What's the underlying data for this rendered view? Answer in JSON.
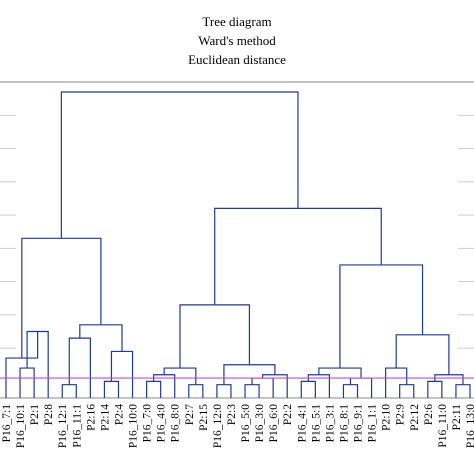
{
  "chart_data": {
    "type": "dendrogram",
    "title_lines": [
      "Tree diagram",
      "Ward's method",
      "Euclidean distance"
    ],
    "leaves": [
      "P16_7:1",
      "P16_10:1",
      "P2:1",
      "P2:8",
      "P16_12:1",
      "P16_11:1",
      "P2:16",
      "P2:14",
      "P2:4",
      "P16_10:0",
      "P16_7:0",
      "P16_4:0",
      "P16_8:0",
      "P2:7",
      "P2:15",
      "P16_12:0",
      "P2:3",
      "P16_5:0",
      "P16_3:0",
      "P16_6:0",
      "P2:2",
      "P16_4:1",
      "P16_5:1",
      "P16_3:1",
      "P16_8:1",
      "P16_9:1",
      "P16_1:1",
      "P2:10",
      "P2:9",
      "P2:12",
      "P2:6",
      "P16_11:0",
      "P2:11",
      "P16_13:0"
    ],
    "cut_height": 6,
    "ylim": [
      0,
      95
    ],
    "grid": true,
    "grid_values": [
      15,
      25,
      35,
      45,
      55,
      65,
      75,
      85
    ],
    "merges": [
      {
        "id": "c1",
        "children": [
          "P16_10:1",
          "P2:1"
        ],
        "height": 9
      },
      {
        "id": "c2",
        "children": [
          "c1",
          "P2:8"
        ],
        "height": 20
      },
      {
        "id": "c3",
        "children": [
          "P16_7:1",
          "c2"
        ],
        "height": 12
      },
      {
        "id": "c4",
        "children": [
          "P16_12:1",
          "P16_11:1"
        ],
        "height": 4
      },
      {
        "id": "c5",
        "children": [
          "c4",
          "P2:16"
        ],
        "height": 18
      },
      {
        "id": "c6",
        "children": [
          "P2:14",
          "P2:4"
        ],
        "height": 5
      },
      {
        "id": "c7",
        "children": [
          "c6",
          "P16_10:0"
        ],
        "height": 14
      },
      {
        "id": "c8",
        "children": [
          "c5",
          "c7"
        ],
        "height": 22
      },
      {
        "id": "c9",
        "children": [
          "c3",
          "c8"
        ],
        "height": 48
      },
      {
        "id": "c10",
        "children": [
          "P16_7:0",
          "P16_4:0"
        ],
        "height": 5
      },
      {
        "id": "c11",
        "children": [
          "c10",
          "P16_8:0"
        ],
        "height": 7
      },
      {
        "id": "c12",
        "children": [
          "P2:7",
          "P2:15"
        ],
        "height": 4
      },
      {
        "id": "c13",
        "children": [
          "c11",
          "c12"
        ],
        "height": 9
      },
      {
        "id": "c14",
        "children": [
          "P16_12:0",
          "P2:3"
        ],
        "height": 4
      },
      {
        "id": "c15",
        "children": [
          "P16_5:0",
          "P16_3:0"
        ],
        "height": 4
      },
      {
        "id": "c16",
        "children": [
          "c15",
          "P16_6:0"
        ],
        "height": 6
      },
      {
        "id": "c17",
        "children": [
          "c16",
          "P2:2"
        ],
        "height": 7
      },
      {
        "id": "c18",
        "children": [
          "c14",
          "c17"
        ],
        "height": 10
      },
      {
        "id": "c19",
        "children": [
          "c13",
          "c18"
        ],
        "height": 28
      },
      {
        "id": "c20",
        "children": [
          "P16_4:1",
          "P16_5:1"
        ],
        "height": 5
      },
      {
        "id": "c21",
        "children": [
          "c20",
          "P16_3:1"
        ],
        "height": 7
      },
      {
        "id": "c22",
        "children": [
          "P16_8:1",
          "P16_9:1"
        ],
        "height": 4
      },
      {
        "id": "c23",
        "children": [
          "c22",
          "P16_1:1"
        ],
        "height": 6
      },
      {
        "id": "c24",
        "children": [
          "c21",
          "c23"
        ],
        "height": 9
      },
      {
        "id": "c25",
        "children": [
          "P2:9",
          "P2:12"
        ],
        "height": 4
      },
      {
        "id": "c26",
        "children": [
          "P2:10",
          "c25"
        ],
        "height": 9
      },
      {
        "id": "c27",
        "children": [
          "P2:6",
          "P16_11:0"
        ],
        "height": 5
      },
      {
        "id": "c28",
        "children": [
          "P2:11",
          "P16_13:0"
        ],
        "height": 4
      },
      {
        "id": "c29",
        "children": [
          "c27",
          "c28"
        ],
        "height": 7
      },
      {
        "id": "c30",
        "children": [
          "c26",
          "c29"
        ],
        "height": 19
      },
      {
        "id": "c31",
        "children": [
          "c24",
          "c30"
        ],
        "height": 40
      },
      {
        "id": "c32",
        "children": [
          "c19",
          "c31"
        ],
        "height": 57
      },
      {
        "id": "c33",
        "children": [
          "c9",
          "c32"
        ],
        "height": 92
      }
    ]
  }
}
